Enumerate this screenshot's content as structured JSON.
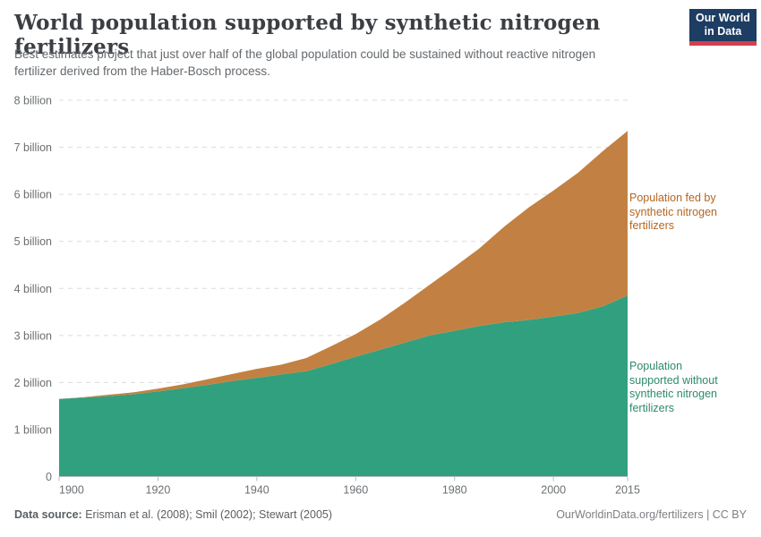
{
  "header": {
    "title": "World population supported by synthetic nitrogen fertilizers",
    "subtitle": "Best estimates project that just over half of the global population could be sustained without reactive nitrogen fertilizer derived from the Haber-Bosch process."
  },
  "logo": {
    "line1": "Our World",
    "line2": "in Data",
    "bg_color": "#1d3d63",
    "bar_color": "#d1404e"
  },
  "legend": {
    "fed": {
      "lines": [
        "Population fed by",
        "synthetic nitrogen",
        "fertilizers"
      ],
      "color": "#b4661f"
    },
    "without": {
      "lines": [
        "Population",
        "supported without",
        "synthetic nitrogen",
        "fertilizers"
      ],
      "color": "#2d8a6d"
    }
  },
  "footer": {
    "data_source_label": "Data source:",
    "data_source_text": "Erisman et al. (2008); Smil (2002); Stewart (2005)",
    "link": "OurWorldinData.org/fertilizers | CC BY"
  },
  "chart_data": {
    "type": "area",
    "stacked": true,
    "title": "World population supported by synthetic nitrogen fertilizers",
    "unit_label": "billion",
    "grid": true,
    "legend_position": "right",
    "x_range": [
      1900,
      2015
    ],
    "y_range": [
      0,
      8
    ],
    "x": [
      1900,
      1905,
      1910,
      1915,
      1920,
      1925,
      1930,
      1935,
      1940,
      1945,
      1950,
      1955,
      1960,
      1965,
      1970,
      1975,
      1980,
      1985,
      1990,
      1995,
      2000,
      2005,
      2010,
      2015
    ],
    "series": [
      {
        "id": "without",
        "name": "Population supported without synthetic nitrogen fertilizers",
        "color": "#31a07e",
        "values": [
          1.65,
          1.68,
          1.71,
          1.75,
          1.81,
          1.88,
          1.95,
          2.03,
          2.1,
          2.17,
          2.24,
          2.39,
          2.55,
          2.7,
          2.85,
          3.0,
          3.1,
          3.2,
          3.28,
          3.33,
          3.4,
          3.48,
          3.62,
          3.85
        ]
      },
      {
        "id": "fed",
        "name": "Population fed by synthetic nitrogen fertilizers",
        "color": "#c28142",
        "values": [
          0.0,
          0.01,
          0.03,
          0.04,
          0.06,
          0.08,
          0.12,
          0.15,
          0.19,
          0.21,
          0.28,
          0.38,
          0.48,
          0.64,
          0.85,
          1.08,
          1.36,
          1.65,
          2.03,
          2.39,
          2.68,
          2.98,
          3.3,
          3.5
        ]
      }
    ],
    "x_ticks": [
      1900,
      1920,
      1940,
      1960,
      1980,
      2000,
      2015
    ],
    "y_ticks": [
      {
        "value": 0,
        "label": "0"
      },
      {
        "value": 1,
        "label": "1 billion"
      },
      {
        "value": 2,
        "label": "2 billion"
      },
      {
        "value": 3,
        "label": "3 billion"
      },
      {
        "value": 4,
        "label": "4 billion"
      },
      {
        "value": 5,
        "label": "5 billion"
      },
      {
        "value": 6,
        "label": "6 billion"
      },
      {
        "value": 7,
        "label": "7 billion"
      },
      {
        "value": 8,
        "label": "8 billion"
      }
    ]
  }
}
